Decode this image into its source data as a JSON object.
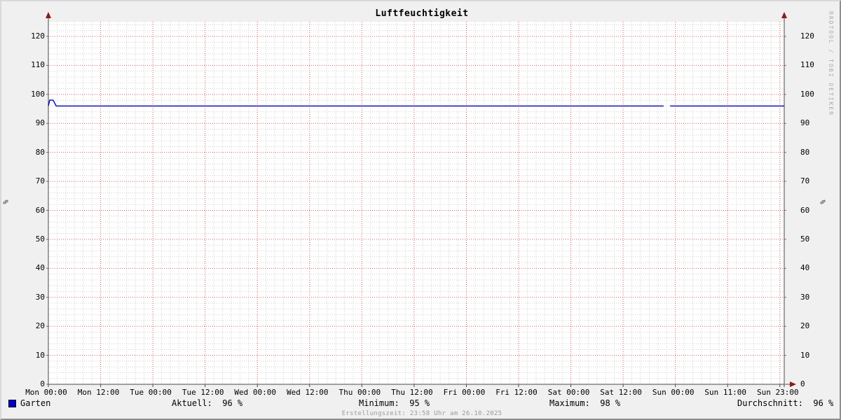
{
  "title": "Luftfeuchtigkeit",
  "watermark": "RRDTOOL / TOBI OETIKER",
  "footer": "Erstellungszeit: 23:58 Uhr am 26.10.2025",
  "colors": {
    "background": "#f0f0f0",
    "canvas": "#ffffff",
    "major_grid": "#d45b5b",
    "minor_grid": "#cfcfcf",
    "axis": "#4a4a4a",
    "arrow": "#8b1a1a",
    "series_line": "#0000b4",
    "legend_swatch": "#0000cc",
    "footer_text": "#9b9b9b",
    "watermark_text": "#aaaaaa"
  },
  "legend": {
    "series_label": "Garten",
    "aktuell": "Aktuell:  96 %",
    "minimum": "Minimum:  95 %",
    "maximum": "Maximum:  98 %",
    "durchschnitt": "Durchschnitt:  96 %"
  },
  "chart_data": {
    "type": "line",
    "title": "Luftfeuchtigkeit",
    "ylabel": "%",
    "ylabel_right": "%",
    "ylim": [
      0,
      125
    ],
    "yticks": [
      0,
      10,
      20,
      30,
      40,
      50,
      60,
      70,
      80,
      90,
      100,
      110,
      120
    ],
    "y_minor_step": 2,
    "x_total_hours": 169,
    "x_major_step_hours": 12,
    "x_minor_step_hours": 2,
    "xticklabels": [
      "Mon 00:00",
      "Mon 12:00",
      "Tue 00:00",
      "Tue 12:00",
      "Wed 00:00",
      "Wed 12:00",
      "Thu 00:00",
      "Thu 12:00",
      "Fri 00:00",
      "Fri 12:00",
      "Sat 00:00",
      "Sat 12:00",
      "Sun 00:00",
      "Sun 11:00",
      "Sun 23:00"
    ],
    "grid_on": true,
    "legend_position": "bottom",
    "series": [
      {
        "name": "Garten",
        "unit": "%",
        "color": "#0000b4",
        "segments": [
          [
            [
              0,
              96
            ],
            [
              0.3,
              98
            ],
            [
              1.1,
              98
            ],
            [
              1.8,
              96
            ],
            [
              141.3,
              96
            ]
          ],
          [
            [
              142.8,
              96
            ],
            [
              169,
              96
            ]
          ]
        ]
      }
    ],
    "stats": {
      "aktuell": 96,
      "minimum": 95,
      "maximum": 98,
      "durchschnitt": 96
    }
  }
}
